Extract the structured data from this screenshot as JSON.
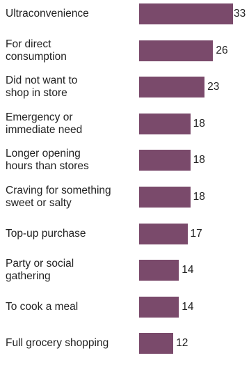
{
  "chart_data": {
    "type": "bar",
    "orientation": "horizontal",
    "categories": [
      "Ultraconvenience",
      "For direct\nconsumption",
      "Did not want to\nshop in store",
      "Emergency or\nimmediate need",
      "Longer opening\nhours than stores",
      "Craving for something\nsweet or salty",
      "Top-up purchase",
      "Party or social\ngathering",
      "To cook a meal",
      "Full grocery shopping"
    ],
    "values": [
      33,
      26,
      23,
      18,
      18,
      18,
      17,
      14,
      14,
      12
    ],
    "value_labels": [
      "33",
      "26",
      "23",
      "18",
      "18",
      "18",
      "17",
      "14",
      "14",
      "12"
    ],
    "xlim": [
      0,
      33
    ],
    "bar_color": "#7a4a6b",
    "grid": false,
    "legend": "none"
  }
}
